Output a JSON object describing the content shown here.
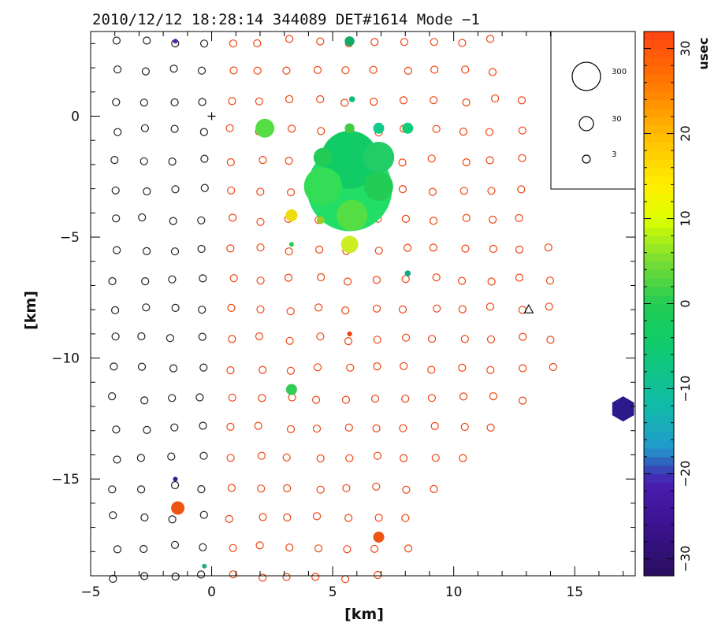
{
  "chart_data": {
    "type": "scatter",
    "title": "2010/12/12 18:28:14 344089 DET#1614 Mode −1",
    "xlabel": "[km]",
    "ylabel": "[km]",
    "xlim": [
      -5,
      17.5
    ],
    "ylim": [
      -19,
      3.5
    ],
    "x_ticks": [
      -5,
      0,
      5,
      10,
      15
    ],
    "y_ticks": [
      -15,
      -10,
      -5,
      0
    ],
    "x_tick_labels": [
      "−5",
      "0",
      "5",
      "10",
      "15"
    ],
    "y_tick_labels": [
      "−15",
      "−10",
      "−5",
      "0"
    ],
    "colorbar": {
      "label": "usec",
      "range": [
        -32,
        32
      ],
      "ticks": [
        30,
        20,
        10,
        0,
        -10,
        -20,
        -30
      ],
      "tick_labels": [
        "30",
        "20",
        "10",
        "0",
        "−10",
        "−20",
        "−30"
      ]
    },
    "size_legend": {
      "entries": [
        300,
        30,
        3
      ]
    },
    "core_marker": {
      "x": 0,
      "y": 0
    },
    "triangle_marker": {
      "x": 13.1,
      "y": -8.0
    },
    "hexagon_marker": {
      "x": 17.0,
      "y": -12.1,
      "color": "#2c1a8c"
    },
    "hit_stations": [
      {
        "x": 5.7,
        "y": -3.0,
        "size": 600,
        "color": "#22dd66"
      },
      {
        "x": 5.7,
        "y": -1.8,
        "size": 280,
        "color": "#11cc66"
      },
      {
        "x": 4.6,
        "y": -2.9,
        "size": 120,
        "color": "#33dd55"
      },
      {
        "x": 6.9,
        "y": -1.7,
        "size": 80,
        "color": "#22cc66"
      },
      {
        "x": 6.9,
        "y": -2.9,
        "size": 70,
        "color": "#22cc55"
      },
      {
        "x": 5.8,
        "y": -4.1,
        "size": 80,
        "color": "#55dd44"
      },
      {
        "x": 4.6,
        "y": -1.7,
        "size": 30,
        "color": "#22cc55"
      },
      {
        "x": 2.2,
        "y": -0.5,
        "size": 30,
        "color": "#55dd44"
      },
      {
        "x": 5.7,
        "y": -5.3,
        "size": 25,
        "color": "#ccee22"
      },
      {
        "x": 3.3,
        "y": -4.1,
        "size": 12,
        "color": "#eedd11"
      },
      {
        "x": 4.5,
        "y": -4.3,
        "size": 5,
        "color": "#99cc22"
      },
      {
        "x": 5.7,
        "y": -0.5,
        "size": 8,
        "color": "#44cc44"
      },
      {
        "x": 6.9,
        "y": -0.5,
        "size": 10,
        "color": "#11cc88"
      },
      {
        "x": 8.1,
        "y": -0.5,
        "size": 10,
        "color": "#11cc77"
      },
      {
        "x": 5.8,
        "y": 0.7,
        "size": 3,
        "color": "#11bb77"
      },
      {
        "x": 5.7,
        "y": 3.1,
        "size": 8,
        "color": "#11aa66"
      },
      {
        "x": 3.3,
        "y": -11.3,
        "size": 10,
        "color": "#33cc55"
      },
      {
        "x": 8.1,
        "y": -6.5,
        "size": 3,
        "color": "#11aa88"
      },
      {
        "x": 3.3,
        "y": -5.3,
        "size": 1,
        "color": "#22cc55"
      },
      {
        "x": 5.7,
        "y": -9.0,
        "size": 2,
        "color": "#ee4411"
      },
      {
        "x": -1.4,
        "y": -16.2,
        "size": 15,
        "color": "#ee5511"
      },
      {
        "x": 6.9,
        "y": -17.4,
        "size": 10,
        "color": "#ee5511"
      },
      {
        "x": -1.5,
        "y": 3.1,
        "size": 1,
        "color": "#5522aa"
      },
      {
        "x": -1.5,
        "y": -15.0,
        "size": 1,
        "color": "#3a1a8c"
      },
      {
        "x": -0.3,
        "y": -18.6,
        "size": 1,
        "color": "#22aa88"
      }
    ]
  }
}
